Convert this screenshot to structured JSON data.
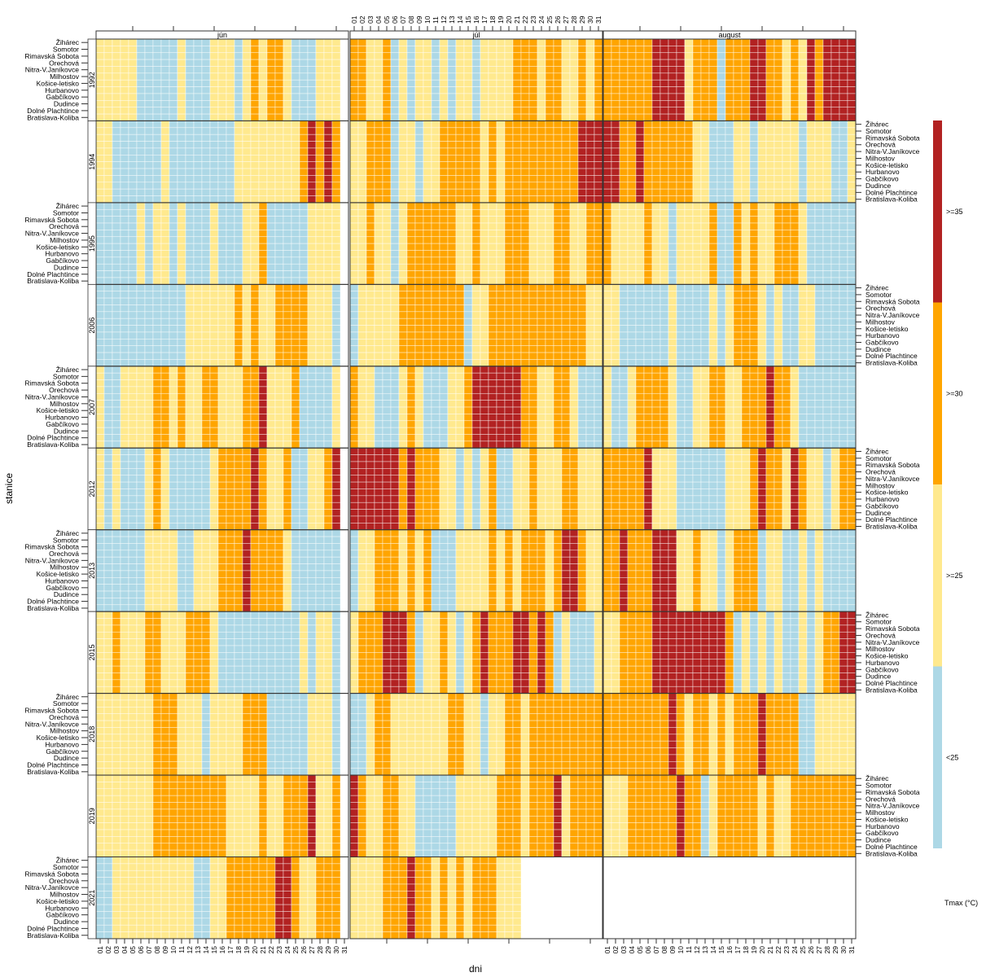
{
  "chart_data": {
    "type": "heatmap",
    "title": "",
    "xlabel": "dni",
    "ylabel": "stanice",
    "legend_title": "Tmax (°C)",
    "legend_placement": "right",
    "months": [
      "jún",
      "júl",
      "august"
    ],
    "days": [
      "01",
      "02",
      "03",
      "04",
      "05",
      "06",
      "07",
      "08",
      "09",
      "10",
      "11",
      "12",
      "13",
      "14",
      "15",
      "16",
      "17",
      "18",
      "19",
      "20",
      "21",
      "22",
      "23",
      "24",
      "25",
      "26",
      "27",
      "28",
      "29",
      "30",
      "31"
    ],
    "stations": [
      "Žihárec",
      "Somotor",
      "Rimavská Sobota",
      "Orechová",
      "Nitra-V.Janíkovce",
      "Milhostov",
      "Košice-letisko",
      "Hurbanovo",
      "Gabčíkovo",
      "Dudince",
      "Dolné Plachtince",
      "Bratislava-Koliba"
    ],
    "categories": [
      {
        "code": "0",
        "label": "<25",
        "color": "#add8e6"
      },
      {
        "code": "1",
        "label": ">=25",
        "color": "#ffe98e"
      },
      {
        "code": "2",
        "label": ">=30",
        "color": "#ffa500"
      },
      {
        "code": "3",
        "label": ">=35",
        "color": "#b22222"
      }
    ],
    "encoding_note": "per year and month, one character per day 01-31; digit = category code (approximate dominant category across stations), '.' = no data",
    "years": [
      {
        "year": "1992",
        "jun": "111110000010001110121221000111.",
        "jul": "2211201011010110111122212211212",
        "aug": "2222223333122202223322121323333"
      },
      {
        "year": "1994",
        "jun": "110000001000000001111111123232.",
        "jul": "1122201101122222121222222222333",
        "aug": "3322322222211000110111110111001"
      },
      {
        "year": "1995",
        "jun": "000001011010001000112000001111.",
        "jul": "1121101222222112111222111221122",
        "aug": "2111121101111200212112221000000"
      },
      {
        "year": "2006",
        "jun": "000000000001111112121122221110.",
        "jul": "0111112222222201122222222222211",
        "aug": "1100000010000101222101001100000"
      },
      {
        "year": "2007",
        "jun": "100111122121122111223111200001.",
        "jul": "2110001210001123333332211221000",
        "aug": "1001222210011221122232210000000"
      },
      {
        "year": "2012",
        "jun": "101000121000001222232112001123.",
        "jul": "3333332322211010120011211122111",
        "aug": "2222231110000001112322132110122"
      },
      {
        "year": "2013",
        "jun": "000000111100111222322221000000.",
        "jul": "0112221212000111121212221233211",
        "aug": "2232223331121101222011001010000"
      },
      {
        "year": "2015",
        "jun": "112111221112221000000000010110.",
        "jul": "1222333201121012322233232010001",
        "aug": "1122223333333332010101001012233"
      },
      {
        "year": "2018",
        "jun": "111111122211101111222000001110.",
        "jul": "0012211111112211011221222222222",
        "aug": "2222222232122121222322220011111"
      },
      {
        "year": "2019",
        "jun": "111111122222222211112112223112.",
        "jul": "3211221100000111112221222312222",
        "aug": "1112222223220122222121122222222"
      },
      {
        "year": "2021",
        "jun": "001111111111001122222233211222.",
        "jul": "111122232212121222111..........",
        "aug": "..............................."
      }
    ]
  }
}
